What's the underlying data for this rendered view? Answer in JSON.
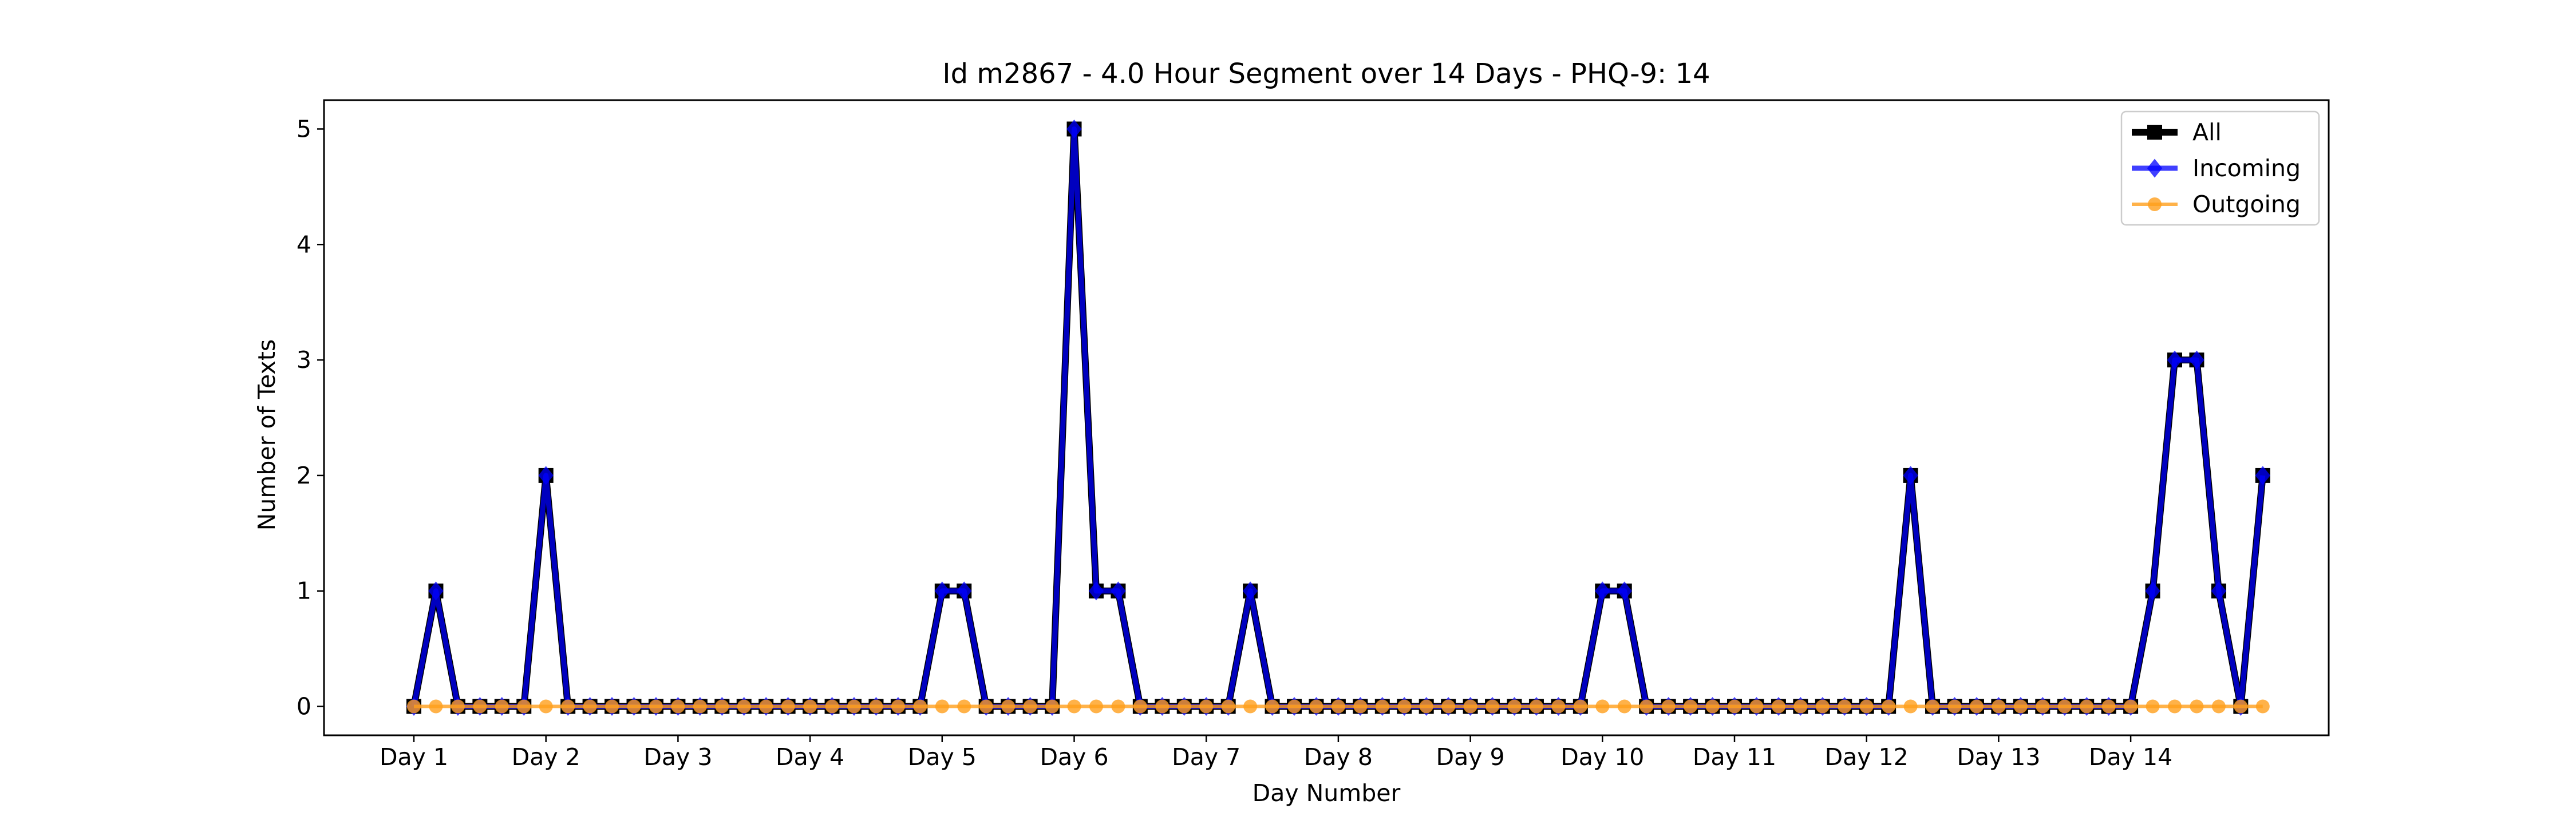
{
  "chart_data": {
    "type": "line",
    "title": "Id m2867 - 4.0 Hour Segment over 14 Days - PHQ-9: 14",
    "xlabel": "Day Number",
    "ylabel": "Number of Texts",
    "x_tick_labels": [
      "Day 1",
      "Day 2",
      "Day 3",
      "Day 4",
      "Day 5",
      "Day 6",
      "Day 7",
      "Day 8",
      "Day 9",
      "Day 10",
      "Day 11",
      "Day 12",
      "Day 13",
      "Day 14"
    ],
    "y_ticks": [
      0,
      1,
      2,
      3,
      4,
      5
    ],
    "ylim": [
      -0.25,
      5.25
    ],
    "segments_per_day": 6,
    "grid": false,
    "legend_position": "top-right",
    "series": [
      {
        "name": "All",
        "color": "#000000",
        "marker": "square",
        "values": [
          0,
          1,
          0,
          0,
          0,
          0,
          2,
          0,
          0,
          0,
          0,
          0,
          0,
          0,
          0,
          0,
          0,
          0,
          0,
          0,
          0,
          0,
          0,
          0,
          1,
          1,
          0,
          0,
          0,
          0,
          5,
          1,
          1,
          0,
          0,
          0,
          0,
          0,
          1,
          0,
          0,
          0,
          0,
          0,
          0,
          0,
          0,
          0,
          0,
          0,
          0,
          0,
          0,
          0,
          1,
          1,
          0,
          0,
          0,
          0,
          0,
          0,
          0,
          0,
          0,
          0,
          0,
          0,
          2,
          0,
          0,
          0,
          0,
          0,
          0,
          0,
          0,
          0,
          0,
          1,
          3,
          3,
          1,
          0,
          2
        ]
      },
      {
        "name": "Incoming",
        "color": "#0000ff",
        "marker": "diamond",
        "values": [
          0,
          1,
          0,
          0,
          0,
          0,
          2,
          0,
          0,
          0,
          0,
          0,
          0,
          0,
          0,
          0,
          0,
          0,
          0,
          0,
          0,
          0,
          0,
          0,
          1,
          1,
          0,
          0,
          0,
          0,
          5,
          1,
          1,
          0,
          0,
          0,
          0,
          0,
          1,
          0,
          0,
          0,
          0,
          0,
          0,
          0,
          0,
          0,
          0,
          0,
          0,
          0,
          0,
          0,
          1,
          1,
          0,
          0,
          0,
          0,
          0,
          0,
          0,
          0,
          0,
          0,
          0,
          0,
          2,
          0,
          0,
          0,
          0,
          0,
          0,
          0,
          0,
          0,
          0,
          1,
          3,
          3,
          1,
          0,
          2
        ]
      },
      {
        "name": "Outgoing",
        "color": "#ff9f1c",
        "marker": "circle",
        "values": [
          0,
          0,
          0,
          0,
          0,
          0,
          0,
          0,
          0,
          0,
          0,
          0,
          0,
          0,
          0,
          0,
          0,
          0,
          0,
          0,
          0,
          0,
          0,
          0,
          0,
          0,
          0,
          0,
          0,
          0,
          0,
          0,
          0,
          0,
          0,
          0,
          0,
          0,
          0,
          0,
          0,
          0,
          0,
          0,
          0,
          0,
          0,
          0,
          0,
          0,
          0,
          0,
          0,
          0,
          0,
          0,
          0,
          0,
          0,
          0,
          0,
          0,
          0,
          0,
          0,
          0,
          0,
          0,
          0,
          0,
          0,
          0,
          0,
          0,
          0,
          0,
          0,
          0,
          0,
          0,
          0,
          0,
          0,
          0,
          0
        ]
      }
    ]
  }
}
